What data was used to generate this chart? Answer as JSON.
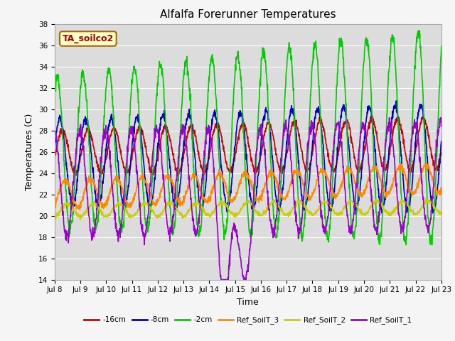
{
  "title": "Alfalfa Forerunner Temperatures",
  "ylabel": "Temperatures (C)",
  "xlabel": "Time",
  "annotation": "TA_soilco2",
  "ylim": [
    14,
    38
  ],
  "background_color": "#dcdcdc",
  "grid_color": "#ffffff",
  "series": {
    "-16cm": {
      "color": "#cc0000",
      "lw": 1.2
    },
    "-8cm": {
      "color": "#0000cc",
      "lw": 1.2
    },
    "-2cm": {
      "color": "#00cc00",
      "lw": 1.2
    },
    "Ref_SoilT_3": {
      "color": "#ff8800",
      "lw": 1.2
    },
    "Ref_SoilT_2": {
      "color": "#cccc00",
      "lw": 1.2
    },
    "Ref_SoilT_1": {
      "color": "#9900cc",
      "lw": 1.2
    }
  },
  "legend_colors": [
    "#cc0000",
    "#0000cc",
    "#00cc00",
    "#ff8800",
    "#cccc00",
    "#9900cc"
  ],
  "legend_labels": [
    "-16cm",
    "-8cm",
    "-2cm",
    "Ref_SoilT_3",
    "Ref_SoilT_2",
    "Ref_SoilT_1"
  ],
  "xtick_positions": [
    0,
    1,
    2,
    3,
    4,
    5,
    6,
    7,
    8,
    9,
    10,
    11,
    12,
    13,
    14,
    15
  ],
  "xtick_labels": [
    "Jul 8",
    "Jul 9",
    "Jul 10",
    "Jul 11",
    "Jul 12",
    "Jul 13",
    "Jul 14",
    "Jul 15",
    "Jul 16",
    "Jul 17",
    "Jul 18",
    "Jul 19",
    "Jul 20",
    "Jul 21",
    "Jul 22",
    "Jul 23"
  ],
  "ytick_positions": [
    14,
    16,
    18,
    20,
    22,
    24,
    26,
    28,
    30,
    32,
    34,
    36,
    38
  ]
}
